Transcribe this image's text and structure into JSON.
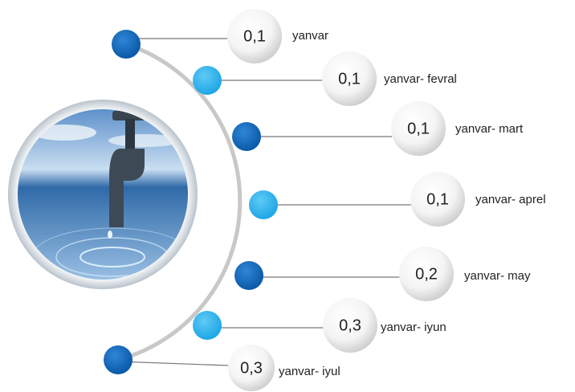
{
  "items": [
    {
      "value": "0,1",
      "label": "yanvar"
    },
    {
      "value": "0,1",
      "label": "yanvar- fevral"
    },
    {
      "value": "0,1",
      "label": "yanvar- mart"
    },
    {
      "value": "0,1",
      "label": "yanvar- aprel"
    },
    {
      "value": "0,2",
      "label": "yanvar- may"
    },
    {
      "value": "0,3",
      "label": "yanvar- iyun"
    },
    {
      "value": "0,3",
      "label": "yanvar- iyul"
    }
  ]
}
